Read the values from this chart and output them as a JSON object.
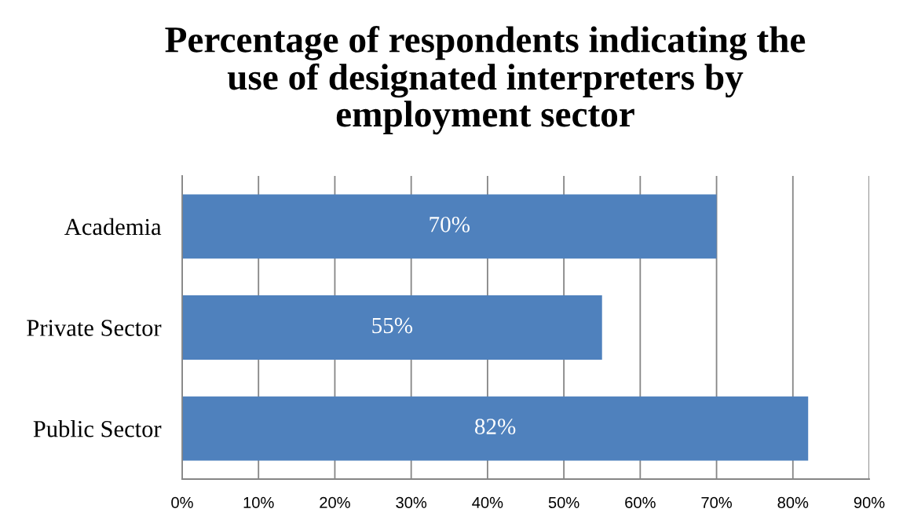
{
  "chart_data": {
    "type": "bar",
    "orientation": "horizontal",
    "title": "Percentage of respondents indicating the\nuse of designated interpreters by\nemployment sector",
    "categories": [
      "Academia",
      "Private Sector",
      "Public Sector"
    ],
    "values": [
      70,
      55,
      82
    ],
    "color": "#4f81bd",
    "value_labels": [
      "70%",
      "55%",
      "82%"
    ],
    "xlim": [
      0,
      90
    ],
    "xticks": [
      {
        "value": 0,
        "label": "0%"
      },
      {
        "value": 10,
        "label": "10%"
      },
      {
        "value": 20,
        "label": "20%"
      },
      {
        "value": 30,
        "label": "30%"
      },
      {
        "value": 40,
        "label": "40%"
      },
      {
        "value": 50,
        "label": "50%"
      },
      {
        "value": 60,
        "label": "60%"
      },
      {
        "value": 70,
        "label": "70%"
      },
      {
        "value": 80,
        "label": "80%"
      },
      {
        "value": 90,
        "label": "90%"
      }
    ],
    "grid": "x",
    "legend": false
  }
}
